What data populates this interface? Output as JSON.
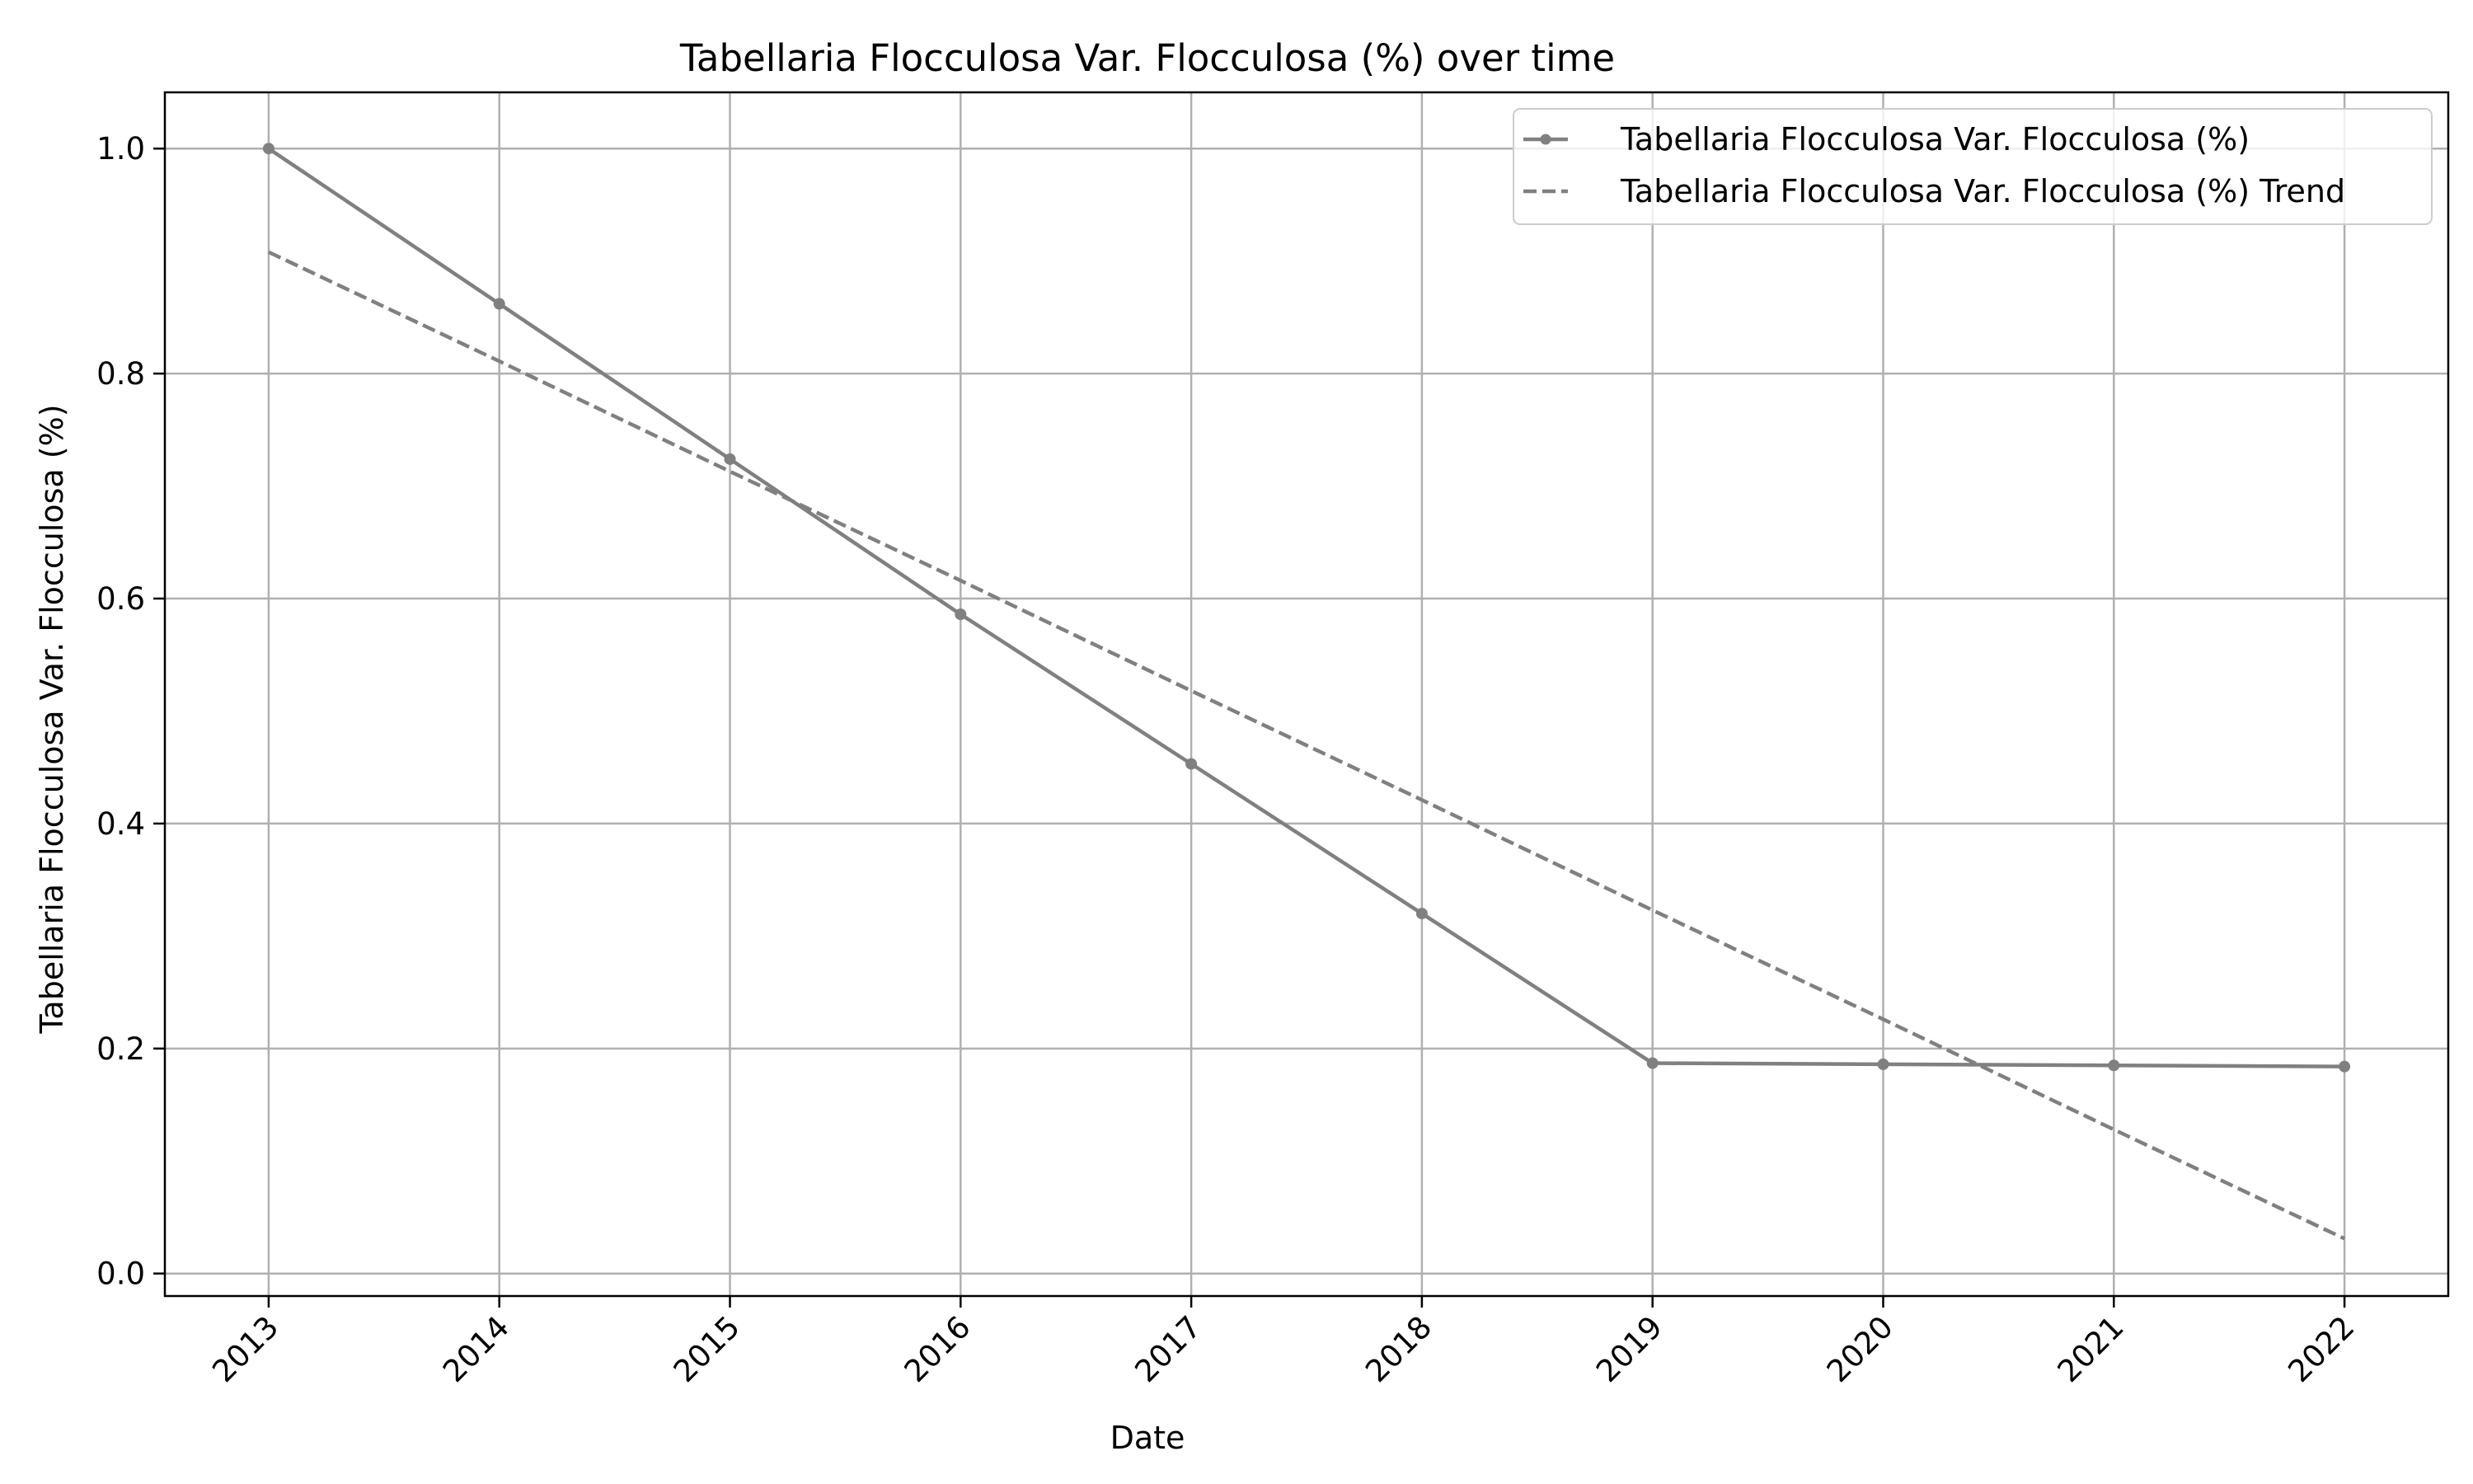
{
  "chart_data": {
    "type": "line",
    "title": "Tabellaria Flocculosa Var. Flocculosa (%) over time",
    "xlabel": "Date",
    "ylabel": "Tabellaria Flocculosa Var. Flocculosa (%)",
    "categories": [
      "2013",
      "2014",
      "2015",
      "2016",
      "2017",
      "2018",
      "2019",
      "2020",
      "2021",
      "2022"
    ],
    "x": [
      2013,
      2014,
      2015,
      2016,
      2017,
      2018,
      2019,
      2020,
      2021,
      2022
    ],
    "xlim": [
      2012.55,
      2022.45
    ],
    "ylim": [
      -0.02,
      1.05
    ],
    "yticks": [
      0.0,
      0.2,
      0.4,
      0.6,
      0.8,
      1.0
    ],
    "ytick_labels": [
      "0.0",
      "0.2",
      "0.4",
      "0.6",
      "0.8",
      "1.0"
    ],
    "grid": true,
    "legend_position": "top-right",
    "series": [
      {
        "name": "Tabellaria Flocculosa Var. Flocculosa (%)",
        "style": "solid-with-markers",
        "color": "#808080",
        "values": [
          1.0,
          0.862,
          0.724,
          0.586,
          0.453,
          0.32,
          0.187,
          0.186,
          0.185,
          0.184
        ]
      },
      {
        "name": "Tabellaria Flocculosa Var. Flocculosa (%) Trend",
        "style": "dashed",
        "color": "#808080",
        "values": [
          0.908,
          0.811,
          0.713,
          0.616,
          0.518,
          0.421,
          0.323,
          0.226,
          0.128,
          0.031
        ]
      }
    ]
  }
}
